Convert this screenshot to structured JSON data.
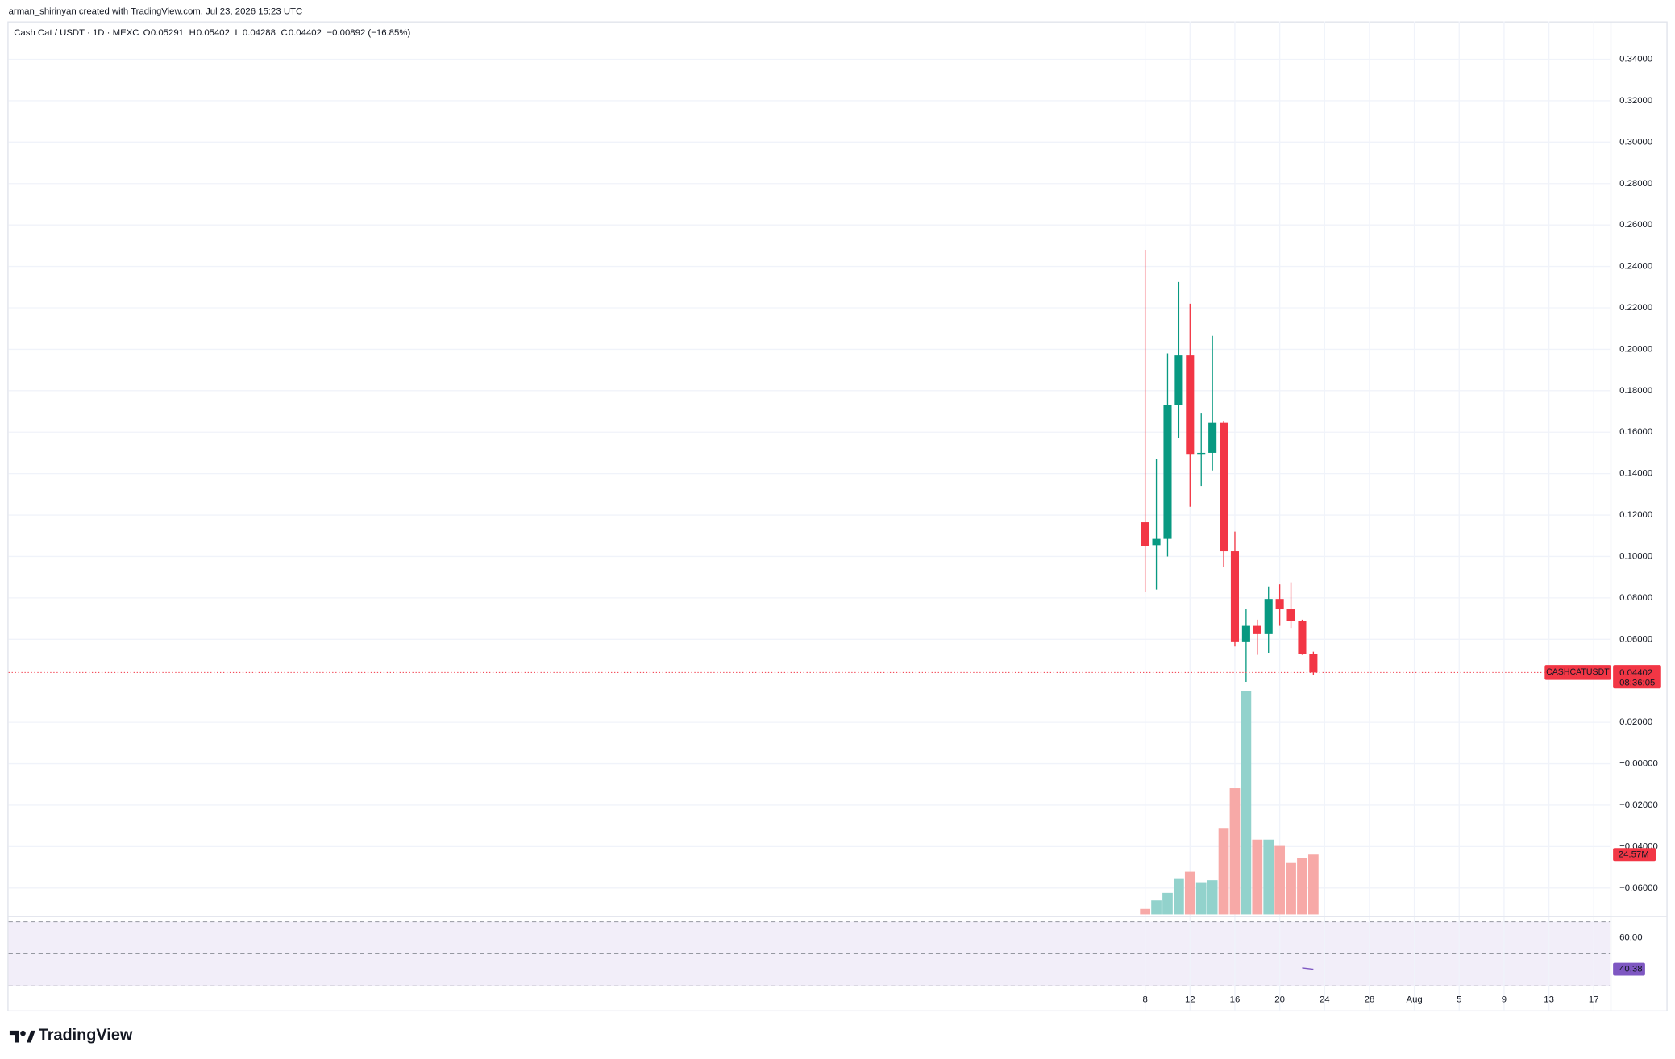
{
  "header": {
    "credit": "arman_shirinyan created with TradingView.com, Jul 23, 2026 15:23 UTC"
  },
  "footer": {
    "logo": "TradingView"
  },
  "chart_data": {
    "type": "candlestick",
    "title": "Cash Cat / USDT · 1D · MEXC",
    "ohlc_labels": [
      "O",
      "H",
      "L",
      "C"
    ],
    "change": "−0.00892 (−16.85%)",
    "symbol_label": "CASHCATUSDT",
    "countdown": "08:36:05",
    "up_color": "#089981",
    "down_color": "#f23645",
    "grid": true,
    "x": [
      8,
      9,
      10,
      11,
      12,
      13,
      14,
      15,
      16,
      17,
      18,
      19,
      20,
      21,
      22,
      23
    ],
    "open": [
      0.1165,
      0.1055,
      0.1085,
      0.173,
      0.197,
      0.1495,
      0.15,
      0.1645,
      0.1025,
      0.059,
      0.0665,
      0.0625,
      0.0795,
      0.0745,
      0.069,
      0.05291
    ],
    "high": [
      0.248,
      0.147,
      0.198,
      0.2325,
      0.222,
      0.169,
      0.2065,
      0.1655,
      0.112,
      0.0745,
      0.0695,
      0.0855,
      0.0865,
      0.0875,
      0.0695,
      0.05402
    ],
    "low": [
      0.083,
      0.084,
      0.1,
      0.157,
      0.124,
      0.134,
      0.1415,
      0.095,
      0.0565,
      0.0395,
      0.0525,
      0.0535,
      0.0665,
      0.0655,
      0.0525,
      0.04288
    ],
    "close": [
      0.105,
      0.1085,
      0.173,
      0.197,
      0.1495,
      0.15,
      0.1645,
      0.1025,
      0.059,
      0.0665,
      0.0625,
      0.0795,
      0.0745,
      0.069,
      0.0529,
      0.04402
    ],
    "xlim": [
      -93.33,
      49.43
    ],
    "xticks": [
      8,
      12,
      16,
      20,
      24,
      28,
      {
        "value": 32,
        "label": "Aug"
      },
      {
        "value": 36,
        "label": "5"
      },
      {
        "value": 40,
        "label": "9"
      },
      {
        "value": 44,
        "label": "13"
      },
      {
        "value": 48,
        "label": "17"
      }
    ],
    "ylim": [
      -0.0727,
      0.3454
    ],
    "yticks": [
      {
        "value": 0.34,
        "label": "0.34000"
      },
      {
        "value": 0.32,
        "label": "0.32000"
      },
      {
        "value": 0.3,
        "label": "0.30000"
      },
      {
        "value": 0.28,
        "label": "0.28000"
      },
      {
        "value": 0.26,
        "label": "0.26000"
      },
      {
        "value": 0.24,
        "label": "0.24000"
      },
      {
        "value": 0.22,
        "label": "0.22000"
      },
      {
        "value": 0.2,
        "label": "0.20000"
      },
      {
        "value": 0.18,
        "label": "0.18000"
      },
      {
        "value": 0.16,
        "label": "0.16000"
      },
      {
        "value": 0.14,
        "label": "0.14000"
      },
      {
        "value": 0.12,
        "label": "0.12000"
      },
      {
        "value": 0.1,
        "label": "0.10000"
      },
      {
        "value": 0.08,
        "label": "0.08000"
      },
      {
        "value": 0.06,
        "label": "0.06000"
      },
      {
        "value": 0.02,
        "label": "0.02000"
      },
      {
        "value": 0,
        "label": "−0.00000"
      },
      {
        "value": -0.02,
        "label": "−0.02000"
      },
      {
        "value": -0.04,
        "label": "−0.04000"
      },
      {
        "value": -0.06,
        "label": "−0.06000"
      }
    ],
    "volume": {
      "up_color": "#92d2cc",
      "down_color": "#f7a9a7",
      "ylim": [
        0,
        356
      ],
      "values": [
        2.2,
        5.7,
        8.8,
        14.5,
        17.5,
        13.2,
        14.0,
        35.5,
        51.8,
        91.7,
        30.7,
        30.7,
        28.1,
        21.1,
        23.2,
        24.57
      ],
      "value_labels": [
        null,
        null,
        null,
        null,
        null,
        null,
        null,
        null,
        null,
        null,
        null,
        null,
        null,
        null,
        null,
        "24.57M"
      ]
    },
    "rsi": {
      "color": "#7e57c2",
      "x": [
        22,
        23
      ],
      "values": [
        41.2,
        40.38
      ],
      "ylim": [
        14.7,
        73.3
      ],
      "bands": [
        70,
        50,
        30
      ],
      "yticks": [
        {
          "value": 60,
          "label": "60.00"
        }
      ]
    }
  }
}
